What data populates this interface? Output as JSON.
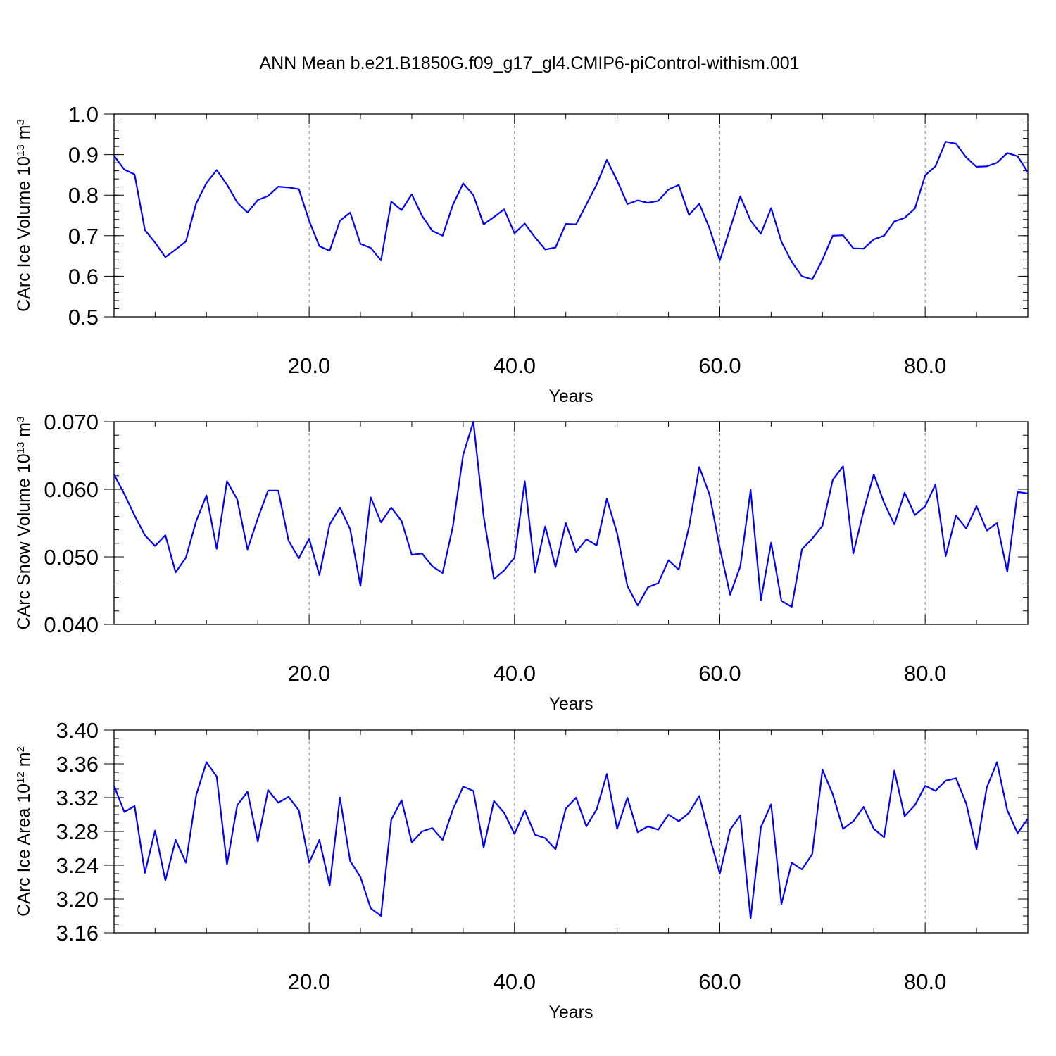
{
  "title": "ANN Mean b.e21.B1850G.f09_g17_gl4.CMIP6-piControl-withism.001",
  "colors": {
    "series": "#0000ff",
    "grid": "#888888",
    "frame": "#000000"
  },
  "chart_data": [
    {
      "type": "line",
      "ylabel": "CArc Ice Volume 10",
      "ylabel_exp": "13",
      "ylabel_unit": " m",
      "ylabel_unit_exp": "3",
      "xlabel": "Years",
      "xlim": [
        1,
        90
      ],
      "ylim": [
        0.5,
        1.0
      ],
      "yticks": [
        0.5,
        0.6,
        0.7,
        0.8,
        0.9,
        1.0
      ],
      "yticklabels": [
        "0.5",
        "0.6",
        "0.7",
        "0.8",
        "0.9",
        "1.0"
      ],
      "yminor": 0.02,
      "xticks": [
        20,
        40,
        60,
        80
      ],
      "xticklabels": [
        "20.0",
        "40.0",
        "60.0",
        "80.0"
      ],
      "grid_x": true,
      "x_start": 1,
      "values": [
        0.897,
        0.863,
        0.851,
        0.714,
        0.683,
        0.647,
        0.666,
        0.686,
        0.78,
        0.83,
        0.862,
        0.826,
        0.782,
        0.757,
        0.788,
        0.798,
        0.821,
        0.819,
        0.815,
        0.737,
        0.674,
        0.663,
        0.737,
        0.757,
        0.68,
        0.67,
        0.639,
        0.784,
        0.763,
        0.802,
        0.749,
        0.712,
        0.7,
        0.776,
        0.829,
        0.8,
        0.728,
        0.746,
        0.765,
        0.706,
        0.73,
        0.696,
        0.666,
        0.671,
        0.729,
        0.728,
        0.777,
        0.826,
        0.887,
        0.836,
        0.778,
        0.787,
        0.781,
        0.786,
        0.814,
        0.825,
        0.751,
        0.779,
        0.718,
        0.639,
        0.718,
        0.797,
        0.737,
        0.705,
        0.768,
        0.685,
        0.636,
        0.6,
        0.592,
        0.641,
        0.7,
        0.701,
        0.669,
        0.668,
        0.691,
        0.7,
        0.735,
        0.744,
        0.767,
        0.849,
        0.871,
        0.932,
        0.927,
        0.893,
        0.87,
        0.871,
        0.88,
        0.904,
        0.896,
        0.856
      ]
    },
    {
      "type": "line",
      "ylabel": "CArc Snow Volume 10",
      "ylabel_exp": "13",
      "ylabel_unit": " m",
      "ylabel_unit_exp": "3",
      "xlabel": "Years",
      "xlim": [
        1,
        90
      ],
      "ylim": [
        0.04,
        0.07
      ],
      "yticks": [
        0.04,
        0.05,
        0.06,
        0.07
      ],
      "yticklabels": [
        "0.040",
        "0.050",
        "0.060",
        "0.070"
      ],
      "yminor": 0.002,
      "xticks": [
        20,
        40,
        60,
        80
      ],
      "xticklabels": [
        "20.0",
        "40.0",
        "60.0",
        "80.0"
      ],
      "grid_x": true,
      "x_start": 1,
      "values": [
        0.0622,
        0.0593,
        0.0561,
        0.0532,
        0.0516,
        0.0532,
        0.0477,
        0.0499,
        0.0553,
        0.0591,
        0.0512,
        0.0612,
        0.0585,
        0.0511,
        0.0557,
        0.0598,
        0.0598,
        0.0524,
        0.0498,
        0.0527,
        0.0473,
        0.0548,
        0.0573,
        0.0541,
        0.0457,
        0.0588,
        0.0551,
        0.0573,
        0.0553,
        0.0503,
        0.0505,
        0.0486,
        0.0476,
        0.0545,
        0.0651,
        0.07,
        0.056,
        0.0467,
        0.048,
        0.0499,
        0.0612,
        0.0477,
        0.0545,
        0.0485,
        0.055,
        0.0507,
        0.0526,
        0.0517,
        0.0586,
        0.0535,
        0.0457,
        0.0428,
        0.0455,
        0.0461,
        0.0495,
        0.0481,
        0.0544,
        0.0633,
        0.0592,
        0.0513,
        0.0444,
        0.0486,
        0.0599,
        0.0436,
        0.0521,
        0.0435,
        0.0426,
        0.0511,
        0.0527,
        0.0546,
        0.0614,
        0.0634,
        0.0505,
        0.0568,
        0.0622,
        0.058,
        0.0548,
        0.0595,
        0.0562,
        0.0575,
        0.0607,
        0.0501,
        0.0561,
        0.0542,
        0.0575,
        0.0539,
        0.055,
        0.0478,
        0.0596,
        0.0594
      ]
    },
    {
      "type": "line",
      "ylabel": "CArc Ice Area 10",
      "ylabel_exp": "12",
      "ylabel_unit": " m",
      "ylabel_unit_exp": "2",
      "xlabel": "Years",
      "xlim": [
        1,
        90
      ],
      "ylim": [
        3.16,
        3.4
      ],
      "yticks": [
        3.16,
        3.2,
        3.24,
        3.28,
        3.32,
        3.36,
        3.4
      ],
      "yticklabels": [
        "3.16",
        "3.20",
        "3.24",
        "3.28",
        "3.32",
        "3.36",
        "3.40"
      ],
      "yminor": 0.01,
      "xticks": [
        20,
        40,
        60,
        80
      ],
      "xticklabels": [
        "20.0",
        "40.0",
        "60.0",
        "80.0"
      ],
      "grid_x": true,
      "x_start": 1,
      "values": [
        3.334,
        3.303,
        3.31,
        3.231,
        3.281,
        3.222,
        3.27,
        3.243,
        3.323,
        3.362,
        3.345,
        3.241,
        3.311,
        3.327,
        3.268,
        3.329,
        3.314,
        3.321,
        3.305,
        3.243,
        3.27,
        3.216,
        3.32,
        3.245,
        3.226,
        3.189,
        3.18,
        3.294,
        3.317,
        3.267,
        3.28,
        3.284,
        3.27,
        3.306,
        3.333,
        3.328,
        3.261,
        3.316,
        3.302,
        3.277,
        3.305,
        3.276,
        3.272,
        3.259,
        3.307,
        3.32,
        3.286,
        3.306,
        3.348,
        3.283,
        3.32,
        3.279,
        3.286,
        3.282,
        3.3,
        3.292,
        3.302,
        3.322,
        3.274,
        3.23,
        3.282,
        3.299,
        3.177,
        3.285,
        3.312,
        3.194,
        3.243,
        3.235,
        3.253,
        3.353,
        3.324,
        3.283,
        3.292,
        3.309,
        3.283,
        3.273,
        3.352,
        3.298,
        3.311,
        3.334,
        3.328,
        3.34,
        3.343,
        3.313,
        3.259,
        3.332,
        3.362,
        3.305,
        3.278,
        3.295
      ]
    }
  ]
}
